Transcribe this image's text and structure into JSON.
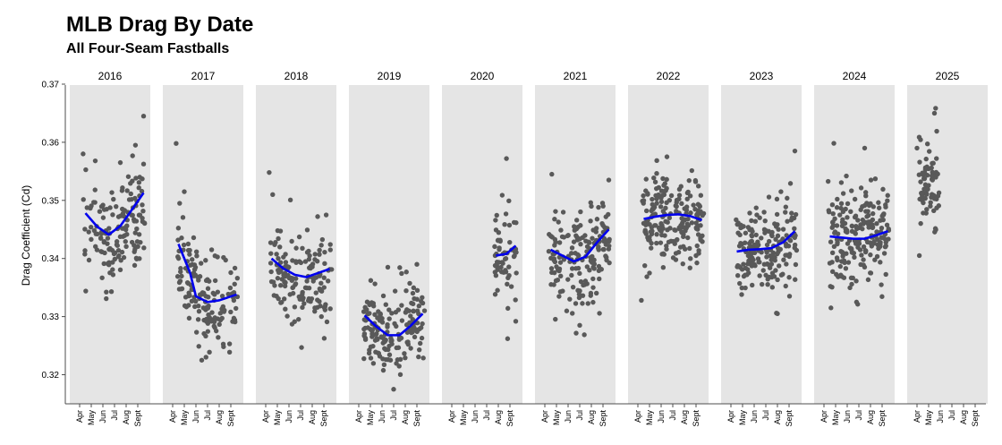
{
  "chart_data": {
    "type": "scatter",
    "title": "MLB Drag By Date",
    "subtitle": "All Four-Seam Fastballs",
    "ylabel": "Drag Coefficient (Cd)",
    "ylim": [
      0.317,
      0.37
    ],
    "yticks": [
      0.32,
      0.33,
      0.34,
      0.35,
      0.36,
      0.37
    ],
    "ytick_labels": [
      "0.32",
      "0.33",
      "0.34",
      "0.35",
      "0.36",
      "0.37"
    ],
    "month_ticks": [
      "Apr",
      "May",
      "Jun",
      "Jul",
      "Aug",
      "Sept"
    ],
    "facets": [
      {
        "year": "2016",
        "trend": [
          [
            0.5,
            0.3478
          ],
          [
            1.5,
            0.3455
          ],
          [
            2.5,
            0.3441
          ],
          [
            3.5,
            0.3456
          ],
          [
            4.5,
            0.3484
          ],
          [
            5.5,
            0.3513
          ]
        ],
        "center": [
          [
            0.5,
            0.346
          ],
          [
            1.5,
            0.3445
          ],
          [
            2.5,
            0.3425
          ],
          [
            3.5,
            0.3445
          ],
          [
            4.5,
            0.3475
          ],
          [
            5.5,
            0.3495
          ]
        ],
        "spread": 0.0042,
        "n": 150,
        "outliers": [
          [
            5.5,
            0.3645
          ],
          [
            0.3,
            0.358
          ],
          [
            4.8,
            0.3595
          ],
          [
            3.5,
            0.3565
          ]
        ]
      },
      {
        "year": "2017",
        "trend": [
          [
            0.5,
            0.3425
          ],
          [
            1.5,
            0.3375
          ],
          [
            2.0,
            0.3335
          ],
          [
            3.0,
            0.3325
          ],
          [
            4.0,
            0.3328
          ],
          [
            5.5,
            0.3338
          ]
        ],
        "center": [
          [
            0.5,
            0.34
          ],
          [
            1.5,
            0.336
          ],
          [
            2.5,
            0.333
          ],
          [
            3.5,
            0.3315
          ],
          [
            4.5,
            0.332
          ],
          [
            5.5,
            0.3335
          ]
        ],
        "spread": 0.0035,
        "n": 150,
        "outliers": [
          [
            0.3,
            0.3598
          ],
          [
            1.0,
            0.3515
          ],
          [
            0.6,
            0.3495
          ],
          [
            2.5,
            0.3225
          ]
        ]
      },
      {
        "year": "2018",
        "trend": [
          [
            0.5,
            0.34
          ],
          [
            1.5,
            0.3383
          ],
          [
            2.5,
            0.3372
          ],
          [
            3.5,
            0.3368
          ],
          [
            4.5,
            0.3375
          ],
          [
            5.5,
            0.3382
          ]
        ],
        "center": [
          [
            0.5,
            0.338
          ],
          [
            1.5,
            0.3375
          ],
          [
            2.5,
            0.3365
          ],
          [
            3.5,
            0.3365
          ],
          [
            4.5,
            0.337
          ],
          [
            5.5,
            0.3375
          ]
        ],
        "spread": 0.0038,
        "n": 150,
        "outliers": [
          [
            0.3,
            0.3548
          ],
          [
            0.6,
            0.351
          ],
          [
            5.2,
            0.3475
          ]
        ]
      },
      {
        "year": "2019",
        "trend": [
          [
            0.5,
            0.3302
          ],
          [
            1.5,
            0.3283
          ],
          [
            2.5,
            0.3268
          ],
          [
            3.5,
            0.3268
          ],
          [
            4.5,
            0.3285
          ],
          [
            5.5,
            0.3305
          ]
        ],
        "center": [
          [
            0.5,
            0.329
          ],
          [
            1.5,
            0.328
          ],
          [
            2.5,
            0.327
          ],
          [
            3.5,
            0.327
          ],
          [
            4.5,
            0.3285
          ],
          [
            5.5,
            0.3305
          ]
        ],
        "spread": 0.0036,
        "n": 170,
        "outliers": [
          [
            3.0,
            0.3175
          ],
          [
            2.5,
            0.3385
          ],
          [
            5.0,
            0.339
          ]
        ]
      },
      {
        "year": "2020",
        "trend": [
          [
            3.8,
            0.3405
          ],
          [
            4.7,
            0.3408
          ],
          [
            5.5,
            0.3422
          ]
        ],
        "center": [
          [
            3.8,
            0.341
          ],
          [
            4.7,
            0.34
          ],
          [
            5.5,
            0.342
          ]
        ],
        "spread": 0.0035,
        "n": 60,
        "outliers": [
          [
            4.7,
            0.3572
          ],
          [
            4.8,
            0.3262
          ],
          [
            5.5,
            0.3292
          ]
        ]
      },
      {
        "year": "2021",
        "trend": [
          [
            0.5,
            0.3415
          ],
          [
            1.5,
            0.3405
          ],
          [
            2.5,
            0.3395
          ],
          [
            3.5,
            0.3403
          ],
          [
            4.5,
            0.3428
          ],
          [
            5.5,
            0.345
          ]
        ],
        "center": [
          [
            0.5,
            0.34
          ],
          [
            1.5,
            0.339
          ],
          [
            2.5,
            0.3385
          ],
          [
            3.5,
            0.3395
          ],
          [
            4.5,
            0.342
          ],
          [
            5.5,
            0.3445
          ]
        ],
        "spread": 0.0043,
        "n": 170,
        "outliers": [
          [
            0.6,
            0.3545
          ],
          [
            3.0,
            0.3285
          ],
          [
            5.5,
            0.3535
          ]
        ]
      },
      {
        "year": "2022",
        "trend": [
          [
            0.5,
            0.3468
          ],
          [
            1.5,
            0.3472
          ],
          [
            2.5,
            0.3475
          ],
          [
            3.5,
            0.3476
          ],
          [
            4.5,
            0.3473
          ],
          [
            5.5,
            0.3466
          ]
        ],
        "center": [
          [
            0.5,
            0.347
          ],
          [
            1.5,
            0.347
          ],
          [
            2.5,
            0.3475
          ],
          [
            3.5,
            0.3475
          ],
          [
            4.5,
            0.347
          ],
          [
            5.5,
            0.3465
          ]
        ],
        "spread": 0.004,
        "n": 200,
        "outliers": [
          [
            0.3,
            0.3328
          ],
          [
            2.5,
            0.3575
          ],
          [
            1.0,
            0.3375
          ]
        ]
      },
      {
        "year": "2023",
        "trend": [
          [
            0.5,
            0.3412
          ],
          [
            1.5,
            0.3415
          ],
          [
            2.5,
            0.3416
          ],
          [
            3.5,
            0.3418
          ],
          [
            4.5,
            0.3428
          ],
          [
            5.5,
            0.3447
          ]
        ],
        "center": [
          [
            0.5,
            0.341
          ],
          [
            1.5,
            0.341
          ],
          [
            2.5,
            0.3415
          ],
          [
            3.5,
            0.3415
          ],
          [
            4.5,
            0.342
          ],
          [
            5.5,
            0.344
          ]
        ],
        "spread": 0.004,
        "n": 180,
        "outliers": [
          [
            5.5,
            0.3585
          ],
          [
            4.0,
            0.3305
          ],
          [
            4.3,
            0.3515
          ]
        ]
      },
      {
        "year": "2024",
        "trend": [
          [
            0.5,
            0.3438
          ],
          [
            1.5,
            0.3436
          ],
          [
            2.5,
            0.3434
          ],
          [
            3.5,
            0.3434
          ],
          [
            4.5,
            0.344
          ],
          [
            5.5,
            0.3447
          ]
        ],
        "center": [
          [
            0.5,
            0.3435
          ],
          [
            1.5,
            0.343
          ],
          [
            2.5,
            0.343
          ],
          [
            3.5,
            0.343
          ],
          [
            4.5,
            0.344
          ],
          [
            5.5,
            0.3445
          ]
        ],
        "spread": 0.0042,
        "n": 200,
        "outliers": [
          [
            3.5,
            0.359
          ],
          [
            0.6,
            0.3315
          ],
          [
            2.8,
            0.3325
          ]
        ]
      },
      {
        "year": "2025",
        "trend": [],
        "center": [
          [
            0.3,
            0.3525
          ],
          [
            1.0,
            0.3525
          ],
          [
            1.8,
            0.3525
          ]
        ],
        "spread": 0.0035,
        "n": 70,
        "outliers": [
          [
            1.5,
            0.365
          ],
          [
            0.2,
            0.3405
          ],
          [
            0.0,
            0.359
          ]
        ]
      }
    ],
    "colors": {
      "panel": "#e5e5e5",
      "point": "#595959",
      "trend": "#0000ee",
      "axis": "#4d4d4d"
    },
    "grid": false,
    "legend": "none"
  }
}
